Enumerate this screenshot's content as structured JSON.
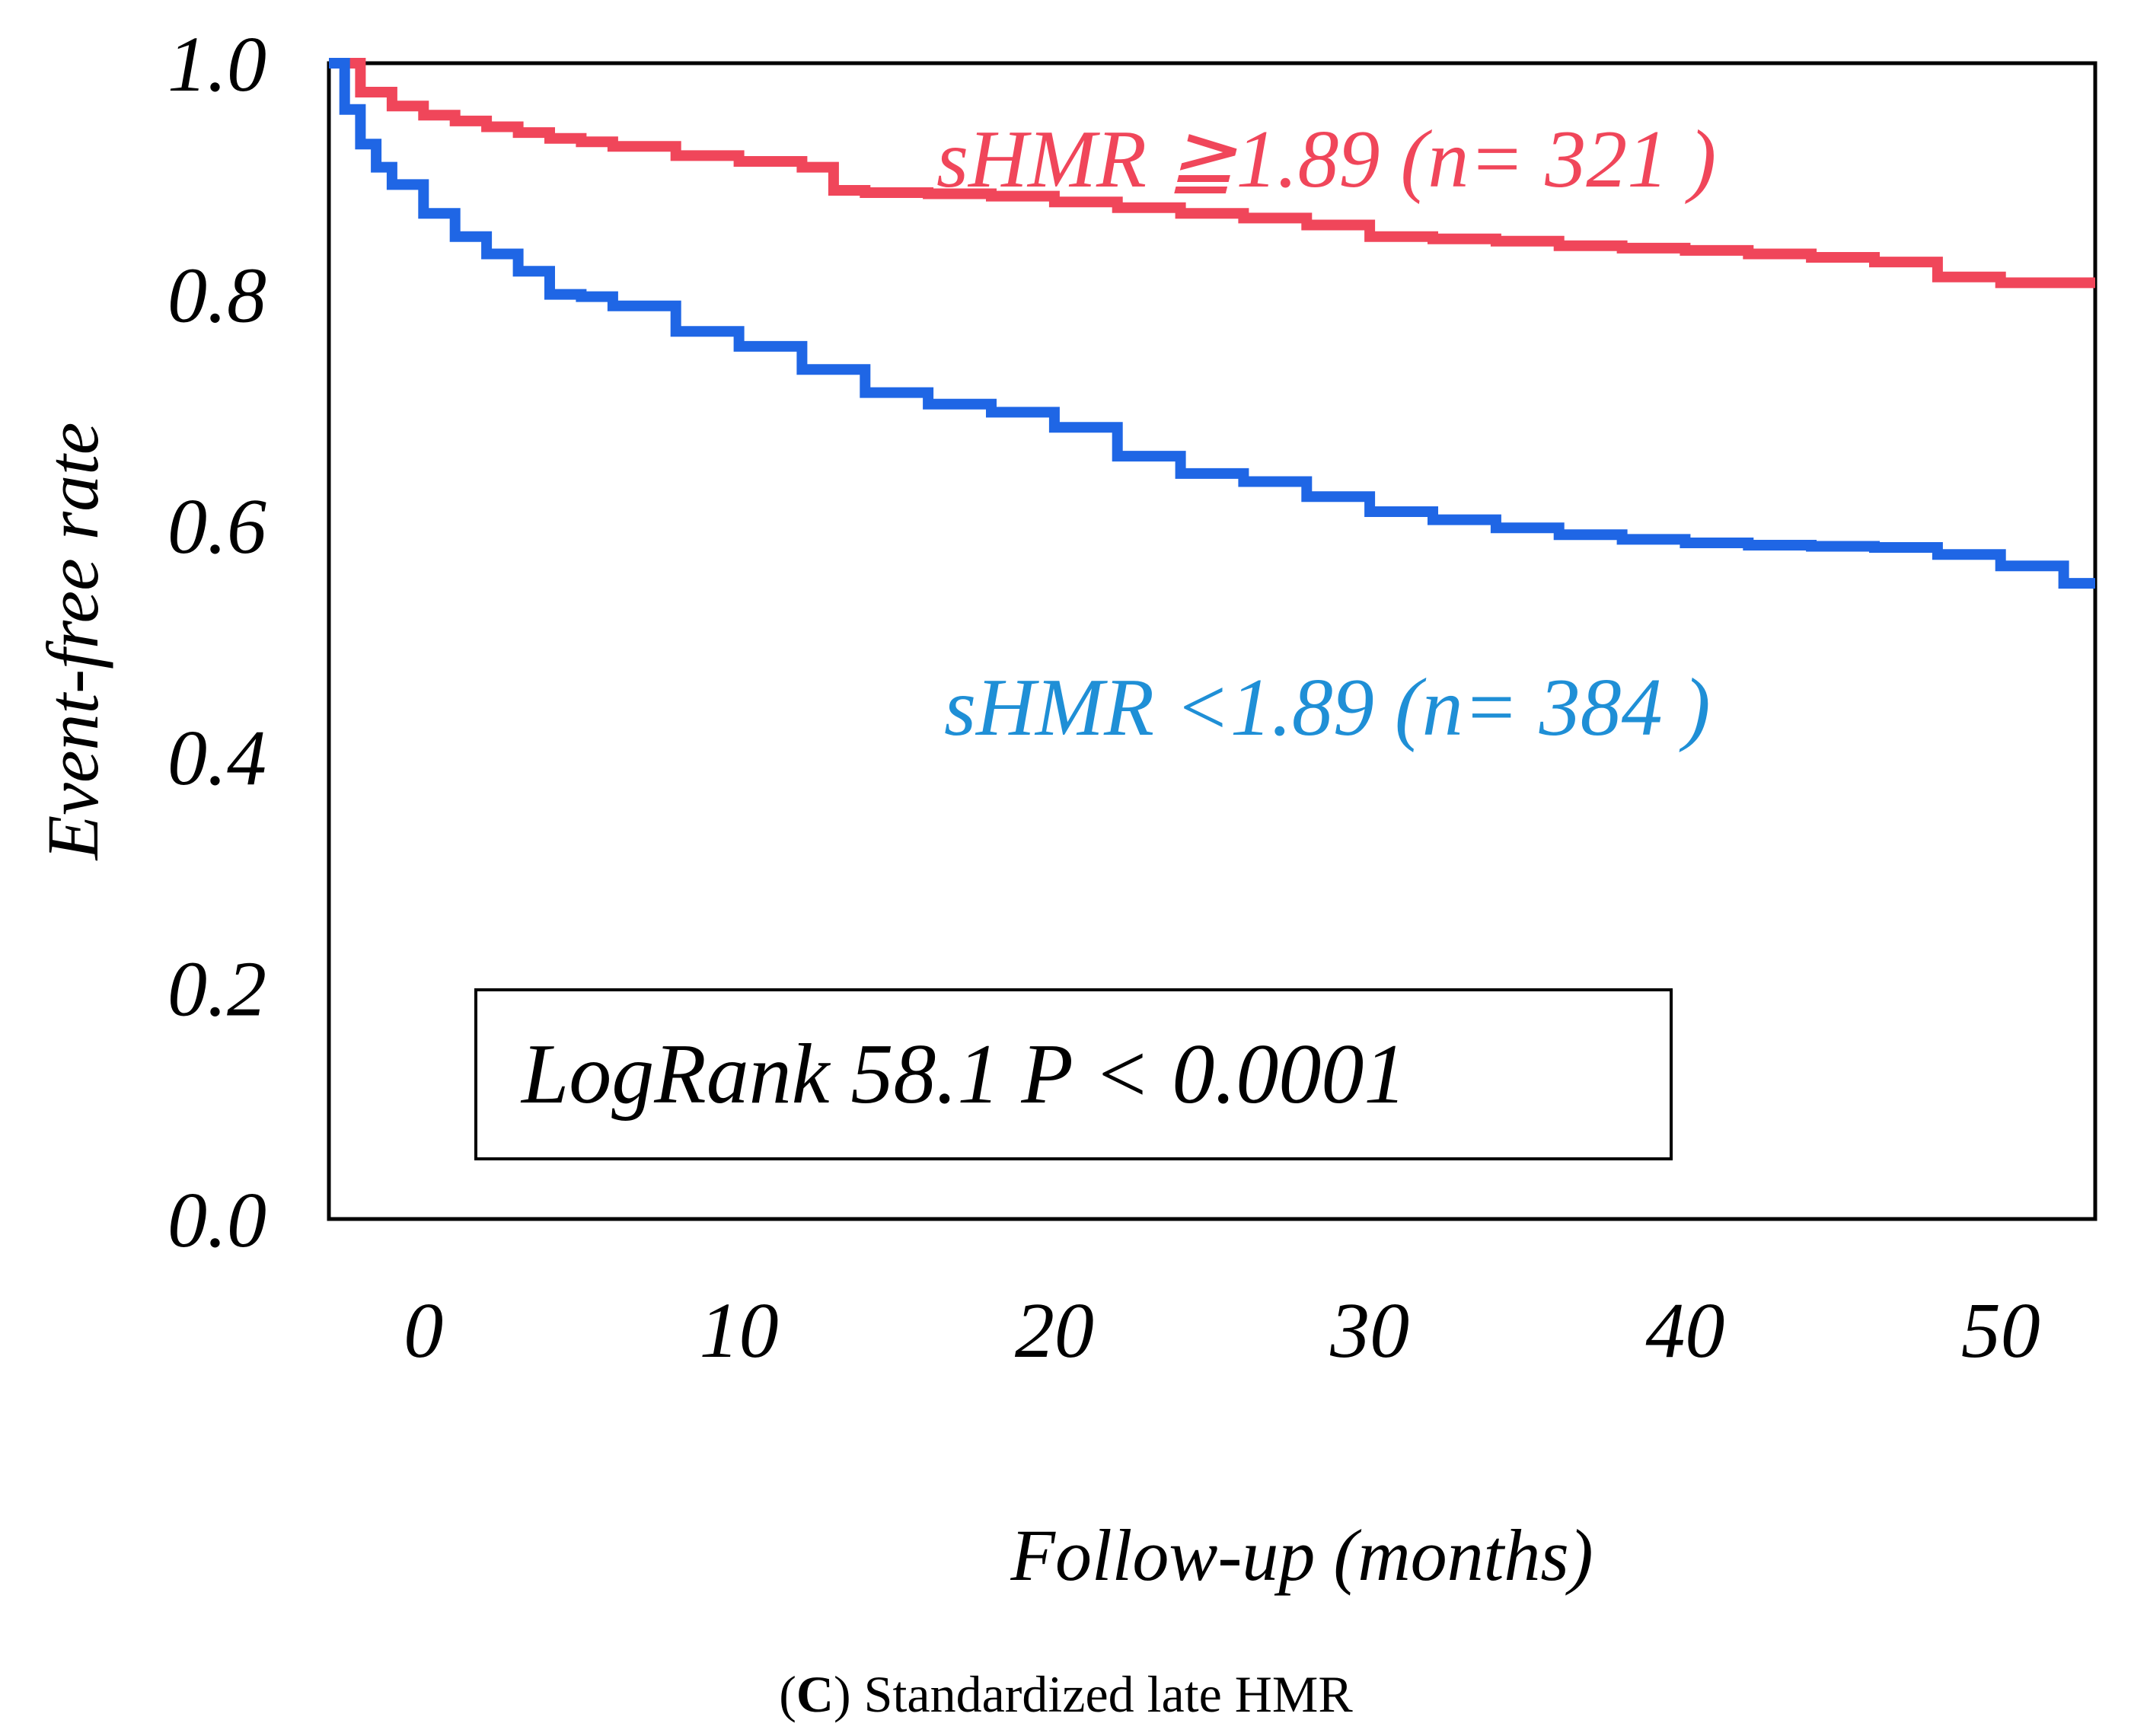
{
  "chart_data": {
    "type": "line",
    "subtype": "kaplan-meier step",
    "ylabel": "Event-free rate",
    "xlabel": "Follow-up (months)",
    "x_ticks": [
      0,
      10,
      20,
      30,
      40,
      50
    ],
    "y_ticks": [
      "0.0",
      "0.2",
      "0.4",
      "0.6",
      "0.8",
      "1.0"
    ],
    "xlim": [
      -3,
      53
    ],
    "ylim": [
      0,
      1
    ],
    "grid": false,
    "series": [
      {
        "name": "sHMR ≧1.89 (n= 321 )",
        "color": "#f0465a",
        "x": [
          -3,
          -2,
          -1,
          0,
          1,
          2,
          3,
          4,
          5,
          6,
          8,
          10,
          12,
          13,
          14,
          16,
          18,
          20,
          22,
          24,
          26,
          28,
          30,
          32,
          34,
          36,
          38,
          40,
          42,
          44,
          46,
          48,
          50,
          52,
          53
        ],
        "y": [
          1.0,
          0.975,
          0.963,
          0.955,
          0.95,
          0.945,
          0.94,
          0.935,
          0.932,
          0.928,
          0.92,
          0.915,
          0.91,
          0.89,
          0.888,
          0.887,
          0.885,
          0.88,
          0.875,
          0.87,
          0.866,
          0.86,
          0.85,
          0.848,
          0.846,
          0.842,
          0.84,
          0.838,
          0.835,
          0.832,
          0.828,
          0.815,
          0.81,
          0.81,
          0.81
        ]
      },
      {
        "name": "sHMR <1.89 (n= 384 )",
        "color": "#1f66e5",
        "x": [
          -3,
          -2.5,
          -2,
          -1.5,
          -1,
          0,
          1,
          2,
          3,
          4,
          5,
          6,
          8,
          10,
          12,
          14,
          16,
          18,
          20,
          22,
          24,
          26,
          28,
          30,
          32,
          34,
          36,
          38,
          40,
          42,
          44,
          46,
          48,
          50,
          52,
          53
        ],
        "y": [
          1.0,
          0.96,
          0.93,
          0.91,
          0.895,
          0.87,
          0.85,
          0.835,
          0.82,
          0.8,
          0.798,
          0.79,
          0.768,
          0.755,
          0.735,
          0.715,
          0.705,
          0.698,
          0.685,
          0.66,
          0.645,
          0.638,
          0.625,
          0.612,
          0.605,
          0.598,
          0.592,
          0.588,
          0.585,
          0.583,
          0.582,
          0.581,
          0.575,
          0.565,
          0.55,
          0.55
        ]
      }
    ],
    "annotation": "LogRank 58.1 P < 0.0001",
    "caption_letter": "C",
    "caption_text": "Standardized late HMR"
  }
}
